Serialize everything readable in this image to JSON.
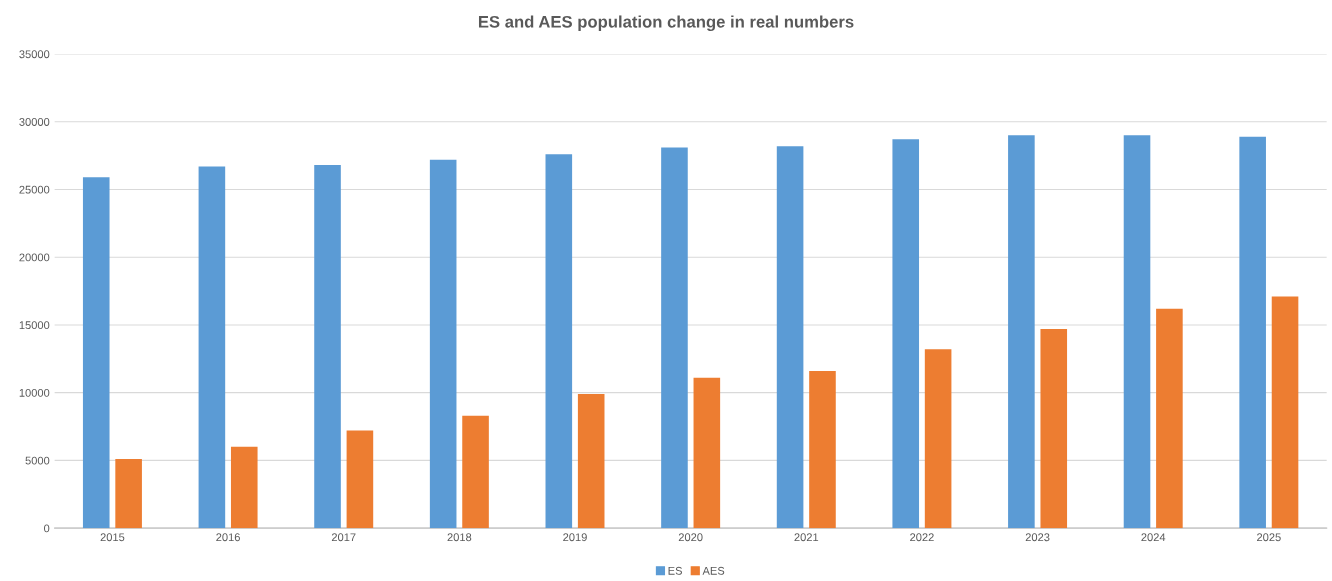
{
  "chart_data": {
    "type": "bar",
    "title": "ES and AES population change in real numbers",
    "categories": [
      "2015",
      "2016",
      "2017",
      "2018",
      "2019",
      "2020",
      "2021",
      "2022",
      "2023",
      "2024",
      "2025"
    ],
    "series": [
      {
        "name": "ES",
        "color": "#5b9bd5",
        "values": [
          25900,
          26700,
          26800,
          27200,
          27600,
          28100,
          28200,
          28700,
          29000,
          29000,
          28900
        ]
      },
      {
        "name": "AES",
        "color": "#ed7d31",
        "values": [
          5100,
          6000,
          7200,
          8300,
          9900,
          11100,
          11600,
          13200,
          14700,
          16200,
          17100
        ]
      }
    ],
    "ylim": [
      0,
      35000
    ],
    "yticks": [
      0,
      5000,
      10000,
      15000,
      20000,
      25000,
      30000,
      35000
    ],
    "grid": "y",
    "legend": "bottom"
  }
}
